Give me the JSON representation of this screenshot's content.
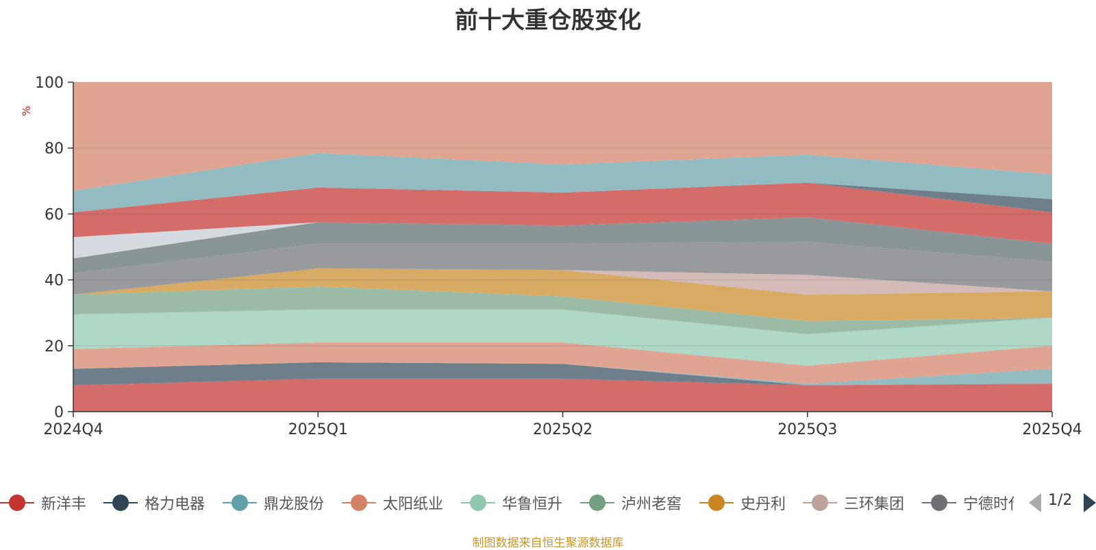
{
  "title": "前十大重仓股变化",
  "footer": "制图数据来自恒生聚源数据库",
  "legend_page": "1/2",
  "chart_data": {
    "type": "area",
    "title": "前十大重仓股变化",
    "ylabel": "%",
    "xlabel": "",
    "categories": [
      "2024Q4",
      "2025Q1",
      "2025Q2",
      "2025Q3",
      "2025Q4"
    ],
    "ylim": [
      0,
      100
    ],
    "yticks": [
      0,
      20,
      40,
      60,
      80,
      100
    ],
    "stacked": true,
    "normalized_percent": true,
    "grid": true,
    "series": [
      {
        "name": "新洋丰",
        "color": "#d46c6a",
        "legend_color": "#c23531",
        "values": [
          8,
          10,
          10,
          8,
          8.5
        ]
      },
      {
        "name": "格力电器",
        "color": "#6e7f8b",
        "legend_color": "#2f4554",
        "values": [
          5,
          5,
          4.5,
          0,
          0
        ]
      },
      {
        "name": "鼎龙股份",
        "color": "#92bcc2",
        "legend_color": "#61a0a8",
        "values": [
          0,
          0,
          0,
          0.5,
          4.5
        ]
      },
      {
        "name": "太阳纸业",
        "color": "#e0a592",
        "legend_color": "#d48265",
        "values": [
          6,
          6,
          6.5,
          5.5,
          7
        ]
      },
      {
        "name": "华鲁恒升",
        "color": "#b0d8c7",
        "legend_color": "#91c7ae",
        "values": [
          10.5,
          10,
          10,
          9.5,
          8.5
        ]
      },
      {
        "name": "泸州老窖",
        "color": "#9cbba6",
        "legend_color": "#749f83",
        "values": [
          6,
          7,
          4,
          4,
          0
        ]
      },
      {
        "name": "史丹利",
        "color": "#d9aa64",
        "legend_color": "#ca8622",
        "values": [
          0,
          5.5,
          8,
          8,
          8
        ]
      },
      {
        "name": "三环集团",
        "color": "#d5bbb7",
        "legend_color": "#bda29a",
        "values": [
          0,
          0,
          0,
          6,
          0
        ]
      },
      {
        "name": "宁德时代",
        "color": "#999a9e",
        "legend_color": "#6e7074",
        "values": [
          6.5,
          7.5,
          8,
          10,
          9
        ]
      },
      {
        "name": "",
        "color": "#8a9598",
        "values": [
          4.5,
          6.5,
          5.5,
          7.5,
          5.5
        ]
      },
      {
        "name": "",
        "color": "#d5d9e0",
        "values": [
          6.5,
          0,
          0,
          0,
          0
        ]
      },
      {
        "name": "",
        "color": "#d46c6a",
        "values": [
          7.5,
          10.5,
          10,
          10.5,
          9.5
        ]
      },
      {
        "name": "",
        "color": "#6e7f8b",
        "values": [
          0,
          0,
          0,
          0,
          4
        ]
      },
      {
        "name": "",
        "color": "#92bcc2",
        "values": [
          6.5,
          10.5,
          8.5,
          8.5,
          7.5
        ]
      },
      {
        "name": "",
        "color": "#e0a592",
        "values": [
          33,
          21.5,
          25,
          22,
          28
        ]
      }
    ]
  }
}
